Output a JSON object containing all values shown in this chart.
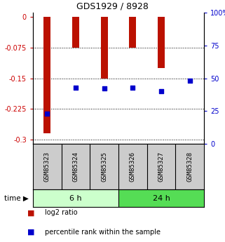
{
  "title": "GDS1929 / 8928",
  "samples": [
    "GSM85323",
    "GSM85324",
    "GSM85325",
    "GSM85326",
    "GSM85327",
    "GSM85328"
  ],
  "log2_ratio": [
    -0.285,
    -0.075,
    -0.15,
    -0.075,
    -0.125,
    0.0
  ],
  "percentile_rank": [
    23,
    43,
    42,
    43,
    40,
    48
  ],
  "groups": [
    {
      "label": "6 h",
      "indices": [
        0,
        1,
        2
      ],
      "color_light": "#ccffcc",
      "color_dark": "#55dd55"
    },
    {
      "label": "24 h",
      "indices": [
        3,
        4,
        5
      ],
      "color_light": "#55dd55",
      "color_dark": "#33bb33"
    }
  ],
  "ylim_left": [
    -0.31,
    0.01
  ],
  "ylim_right": [
    -3.1,
    1.0
  ],
  "yticks_left": [
    0,
    -0.075,
    -0.15,
    -0.225,
    -0.3
  ],
  "yticks_right": [
    0,
    25,
    50,
    75,
    100
  ],
  "bar_color": "#bb1100",
  "dot_color": "#0000cc",
  "left_tick_color": "#cc0000",
  "right_tick_color": "#0000cc",
  "bar_width": 0.25,
  "bg_color": "#ffffff",
  "plot_bg": "#ffffff",
  "grid_color": "#000000",
  "sample_bg": "#cccccc",
  "time_label": "time"
}
